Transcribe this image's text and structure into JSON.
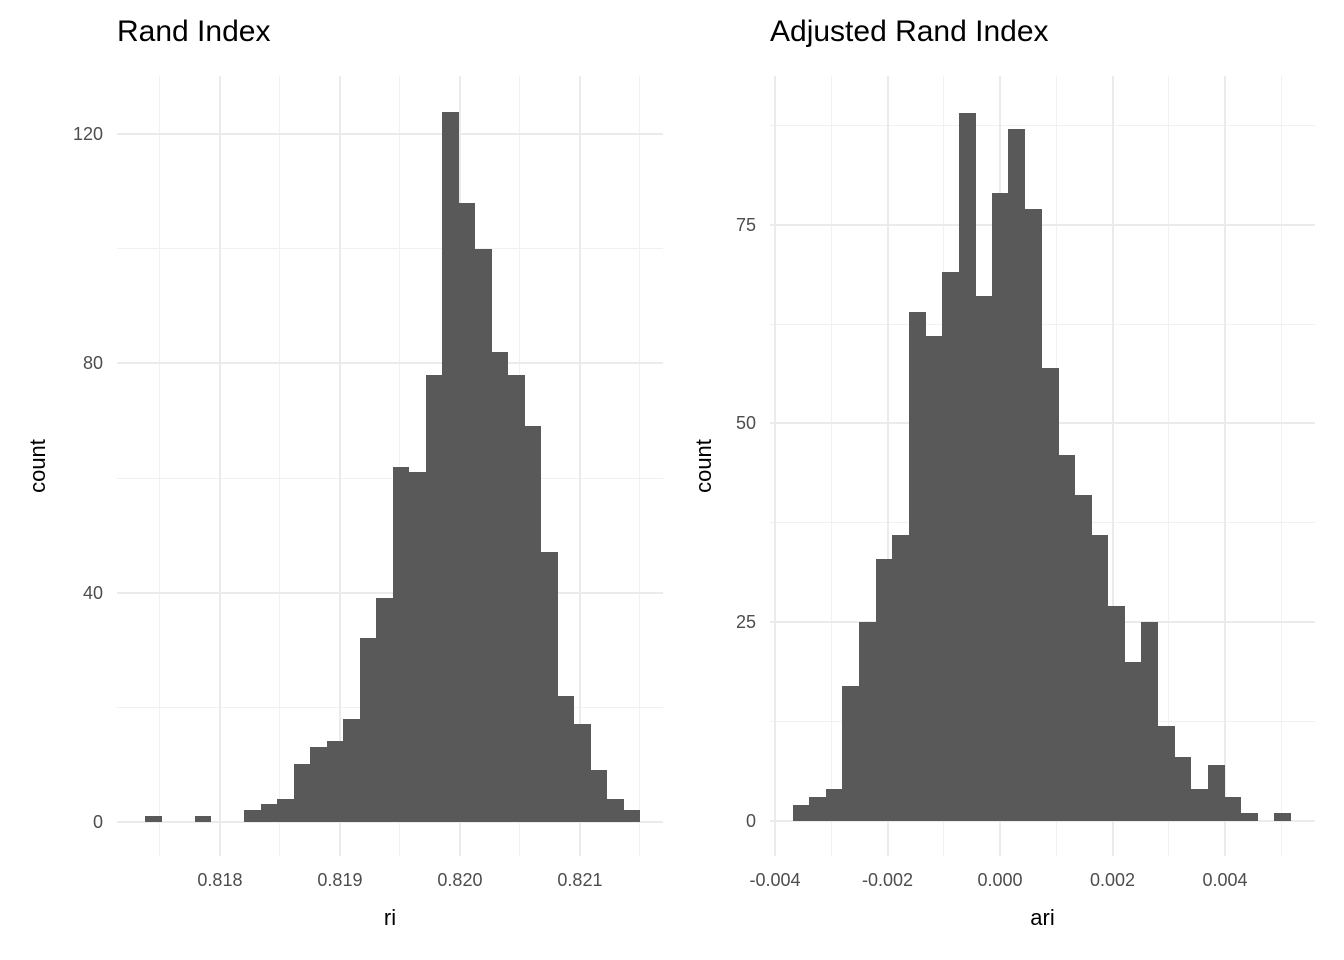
{
  "figure": {
    "background": "#FFFFFF",
    "bar_fill": "#595959",
    "grid_major_color": "#EBEBEB",
    "grid_minor_color": "#F1F1F1",
    "tick_label_color": "#4D4D4D",
    "title_color": "#000000"
  },
  "chart_data": [
    {
      "type": "bar",
      "subtype": "histogram",
      "title": "Rand Index",
      "xlabel": "ri",
      "ylabel": "count",
      "grid": true,
      "legend_position": "none",
      "bin_width": 0.0001375,
      "x": [
        0.817444,
        0.817582,
        0.817719,
        0.817857,
        0.817994,
        0.818132,
        0.818269,
        0.818407,
        0.818544,
        0.818682,
        0.818819,
        0.818957,
        0.819094,
        0.819232,
        0.819369,
        0.819507,
        0.819644,
        0.819782,
        0.819919,
        0.820057,
        0.820194,
        0.820332,
        0.820469,
        0.820607,
        0.820744,
        0.820882,
        0.821019,
        0.821157,
        0.821294,
        0.821432
      ],
      "counts": [
        1,
        0,
        0,
        1,
        0,
        0,
        2,
        3,
        4,
        10,
        13,
        14,
        18,
        32,
        39,
        62,
        61,
        78,
        124,
        108,
        100,
        82,
        78,
        69,
        47,
        22,
        17,
        9,
        4,
        2
      ],
      "x_ticks": {
        "values": [
          0.818,
          0.819,
          0.82,
          0.821
        ],
        "labels": [
          "0.818",
          "0.819",
          "0.820",
          "0.821"
        ]
      },
      "x_minor": [
        0.8175,
        0.8185,
        0.8195,
        0.8205,
        0.8215
      ],
      "y_ticks": {
        "values": [
          0,
          40,
          80,
          120
        ],
        "labels": [
          "0",
          "40",
          "80",
          "120"
        ]
      },
      "y_minor": [
        20,
        60,
        100
      ],
      "xlim": [
        0.817142,
        0.821692
      ],
      "ylim": [
        -6,
        130.2
      ]
    },
    {
      "type": "bar",
      "subtype": "histogram",
      "title": "Adjusted Rand Index",
      "xlabel": "ari",
      "ylabel": "count",
      "grid": true,
      "legend_position": "none",
      "bin_width": 0.0002951,
      "x": [
        -0.003538,
        -0.003243,
        -0.002948,
        -0.002653,
        -0.002358,
        -0.002063,
        -0.001768,
        -0.001473,
        -0.001178,
        -0.000883,
        -0.000588,
        -0.000293,
        2e-06,
        0.000297,
        0.000592,
        0.000887,
        0.001182,
        0.001477,
        0.001772,
        0.002067,
        0.002362,
        0.002657,
        0.002952,
        0.003247,
        0.003542,
        0.003837,
        0.004132,
        0.004427,
        0.004722,
        0.005017
      ],
      "counts": [
        2,
        3,
        4,
        17,
        25,
        33,
        36,
        64,
        61,
        69,
        89,
        66,
        79,
        87,
        77,
        57,
        46,
        41,
        36,
        27,
        20,
        25,
        12,
        8,
        4,
        7,
        3,
        1,
        0,
        1
      ],
      "x_ticks": {
        "values": [
          -0.004,
          -0.002,
          0.0,
          0.002,
          0.004
        ],
        "labels": [
          "-0.004",
          "-0.002",
          "0.000",
          "0.002",
          "0.004"
        ]
      },
      "x_minor": [
        -0.003,
        -0.001,
        0.001,
        0.003,
        0.005
      ],
      "y_ticks": {
        "values": [
          0,
          25,
          50,
          75
        ],
        "labels": [
          "0",
          "25",
          "50",
          "75"
        ]
      },
      "y_minor": [
        12.5,
        37.5,
        62.5,
        87.5
      ],
      "xlim": [
        -0.004089,
        0.0056
      ],
      "ylim": [
        -4.4,
        93.7
      ]
    }
  ]
}
